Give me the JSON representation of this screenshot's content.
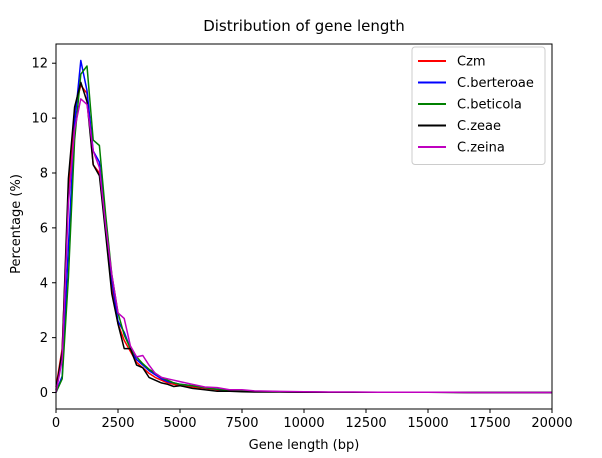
{
  "chart_data": {
    "type": "line",
    "title": "Distribution of gene length",
    "xlabel": "Gene length (bp)",
    "ylabel": "Percentage (%)",
    "xlim": [
      0,
      20000
    ],
    "ylim": [
      -0.6,
      12.7
    ],
    "xticks": [
      0,
      2500,
      5000,
      7500,
      10000,
      12500,
      15000,
      17500,
      20000
    ],
    "yticks": [
      0,
      2,
      4,
      6,
      8,
      10,
      12
    ],
    "grid": false,
    "legend_position": "top-right",
    "series": [
      {
        "name": "Czm",
        "color": "#ff0000",
        "x": [
          0,
          250,
          500,
          750,
          1000,
          1250,
          1500,
          1750,
          2000,
          2250,
          2500,
          2750,
          3000,
          3250,
          3500,
          3750,
          4000,
          4250,
          4500,
          4750,
          5000,
          5500,
          6000,
          6500,
          7000,
          7500,
          8000,
          9000,
          10000,
          11000,
          12000,
          13000,
          14000,
          15000,
          16000,
          17000,
          18000,
          19000,
          20000
        ],
        "values": [
          0.2,
          1.6,
          7.2,
          10.3,
          11.2,
          10.9,
          8.3,
          8.0,
          6.0,
          3.8,
          2.5,
          1.9,
          1.5,
          1.1,
          0.9,
          0.7,
          0.55,
          0.45,
          0.35,
          0.3,
          0.25,
          0.2,
          0.15,
          0.1,
          0.07,
          0.05,
          0.04,
          0.03,
          0.02,
          0.01,
          0.01,
          0.01,
          0.01,
          0.01,
          0.01,
          0.0,
          0.0,
          0.0,
          0.0
        ]
      },
      {
        "name": "C.berteroae",
        "color": "#0000ff",
        "x": [
          0,
          250,
          500,
          750,
          1000,
          1250,
          1500,
          1750,
          2000,
          2250,
          2500,
          2750,
          3000,
          3250,
          3500,
          3750,
          4000,
          4250,
          4500,
          4750,
          5000,
          5500,
          6000,
          6500,
          7000,
          7500,
          8000,
          9000,
          10000,
          11000,
          12000,
          13000,
          14000,
          15000,
          16000,
          17000,
          18000,
          19000,
          20000
        ],
        "values": [
          0.0,
          0.6,
          5.3,
          9.8,
          12.1,
          11.0,
          8.8,
          8.4,
          6.3,
          4.1,
          2.6,
          2.2,
          1.6,
          1.2,
          1.0,
          0.8,
          0.65,
          0.5,
          0.4,
          0.35,
          0.3,
          0.25,
          0.18,
          0.12,
          0.08,
          0.06,
          0.04,
          0.03,
          0.02,
          0.01,
          0.01,
          0.01,
          0.01,
          0.01,
          0.01,
          0.0,
          0.0,
          0.0,
          0.0
        ]
      },
      {
        "name": "C.beticola",
        "color": "#008000",
        "x": [
          0,
          250,
          500,
          750,
          1000,
          1250,
          1500,
          1750,
          2000,
          2250,
          2500,
          2750,
          3000,
          3250,
          3500,
          3750,
          4000,
          4250,
          4500,
          4750,
          5000,
          5500,
          6000,
          6500,
          7000,
          7500,
          8000,
          9000,
          10000,
          11000,
          12000,
          13000,
          14000,
          15000,
          16000,
          17000,
          18000,
          19000,
          20000
        ],
        "values": [
          0.0,
          0.5,
          4.2,
          9.2,
          11.6,
          11.9,
          9.2,
          9.0,
          6.5,
          4.3,
          2.9,
          2.1,
          1.6,
          1.3,
          1.05,
          0.85,
          0.7,
          0.55,
          0.45,
          0.35,
          0.3,
          0.25,
          0.18,
          0.12,
          0.08,
          0.06,
          0.04,
          0.03,
          0.02,
          0.01,
          0.01,
          0.01,
          0.01,
          0.01,
          0.01,
          0.0,
          0.0,
          0.0,
          0.0
        ]
      },
      {
        "name": "C.zeae",
        "color": "#000000",
        "x": [
          0,
          250,
          500,
          750,
          1000,
          1250,
          1500,
          1750,
          2000,
          2250,
          2500,
          2750,
          3000,
          3250,
          3500,
          3750,
          4000,
          4250,
          4500,
          4750,
          5000,
          5500,
          6000,
          6500,
          7000,
          7500,
          8000,
          9000,
          10000,
          11000,
          12000,
          13000,
          14000,
          15000,
          16000,
          17000,
          18000,
          19000,
          20000
        ],
        "values": [
          0.1,
          1.5,
          7.8,
          10.4,
          11.3,
          10.6,
          8.3,
          7.9,
          5.8,
          3.6,
          2.5,
          1.6,
          1.6,
          1.0,
          0.9,
          0.55,
          0.45,
          0.35,
          0.3,
          0.22,
          0.25,
          0.15,
          0.1,
          0.05,
          0.05,
          0.03,
          0.02,
          0.02,
          0.01,
          0.01,
          0.01,
          0.01,
          0.01,
          0.01,
          0.0,
          0.0,
          0.0,
          0.0,
          0.0
        ]
      },
      {
        "name": "C.zeina",
        "color": "#bf00bf",
        "x": [
          0,
          250,
          500,
          750,
          1000,
          1250,
          1500,
          1750,
          2000,
          2250,
          2500,
          2750,
          3000,
          3250,
          3500,
          3750,
          4000,
          4250,
          4500,
          4750,
          5000,
          5500,
          6000,
          6500,
          7000,
          7500,
          8000,
          9000,
          10000,
          11000,
          12000,
          13000,
          14000,
          15000,
          16000,
          17000,
          18000,
          19000,
          20000
        ],
        "values": [
          0.0,
          1.2,
          6.9,
          9.6,
          10.7,
          10.5,
          8.8,
          8.2,
          6.1,
          4.3,
          2.9,
          2.7,
          1.7,
          1.3,
          1.35,
          1.0,
          0.7,
          0.55,
          0.5,
          0.45,
          0.4,
          0.3,
          0.2,
          0.18,
          0.1,
          0.1,
          0.06,
          0.04,
          0.03,
          0.02,
          0.02,
          0.01,
          0.01,
          0.01,
          0.01,
          0.0,
          0.0,
          0.0,
          0.0
        ]
      }
    ]
  }
}
